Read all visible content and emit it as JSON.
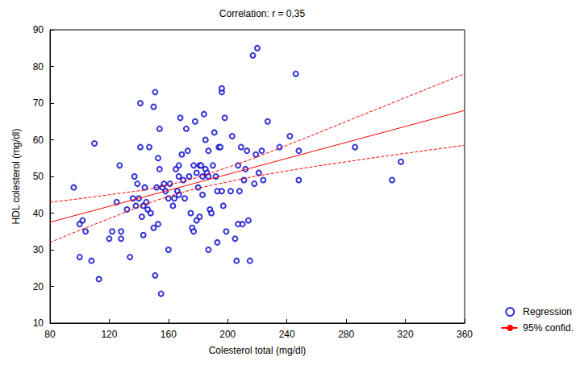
{
  "chart_data": {
    "type": "scatter",
    "title": "Correlation: r = 0,35",
    "x_label": "Colesterol total (mg/dl)",
    "y_label": "HDL colesterol (mg/dl)",
    "xlim": [
      80,
      360
    ],
    "xticks": [
      80,
      120,
      160,
      200,
      240,
      280,
      320,
      360
    ],
    "ylim": [
      10,
      90
    ],
    "yticks": [
      10,
      20,
      30,
      40,
      50,
      60,
      70,
      80,
      90
    ],
    "grid": false,
    "legend": "lower right",
    "series": [
      {
        "name": "Regression",
        "type": "scatter",
        "marker": "hollow_circle",
        "color": "#0000cc",
        "x": [
          96,
          100,
          100,
          102,
          104,
          108,
          110,
          113,
          120,
          122,
          125,
          127,
          128,
          128,
          132,
          134,
          136,
          137,
          138,
          139,
          140,
          141,
          141,
          142,
          143,
          143,
          144,
          145,
          146,
          147,
          148,
          150,
          150,
          151,
          151,
          152,
          153,
          153,
          154,
          154,
          155,
          156,
          157,
          158,
          160,
          160,
          161,
          163,
          164,
          165,
          166,
          167,
          167,
          167,
          168,
          169,
          170,
          171,
          172,
          173,
          174,
          175,
          176,
          177,
          177,
          178,
          179,
          179,
          180,
          181,
          181,
          182,
          183,
          183,
          184,
          185,
          185,
          186,
          187,
          187,
          187,
          188,
          189,
          190,
          191,
          192,
          193,
          193,
          194,
          195,
          196,
          196,
          196,
          197,
          198,
          199,
          202,
          203,
          205,
          206,
          207,
          207,
          208,
          209,
          210,
          211,
          212,
          213,
          214,
          215,
          217,
          218,
          219,
          220,
          221,
          223,
          224,
          227,
          235,
          242,
          246,
          248,
          248,
          286,
          311,
          317
        ],
        "values": [
          47,
          28,
          37,
          38,
          35,
          27,
          59,
          22,
          33,
          35,
          43,
          53,
          35,
          33,
          41,
          28,
          44,
          50,
          42,
          48,
          44,
          58,
          70,
          39,
          42,
          34,
          47,
          43,
          41,
          58,
          40,
          36,
          69,
          73,
          23,
          47,
          37,
          55,
          52,
          63,
          18,
          47,
          48,
          46,
          30,
          44,
          48,
          42,
          44,
          52,
          46,
          50,
          45,
          53,
          66,
          56,
          49,
          44,
          63,
          57,
          50,
          40,
          36,
          53,
          35,
          65,
          51,
          38,
          47,
          39,
          53,
          53,
          50,
          45,
          67,
          60,
          52,
          51,
          30,
          50,
          57,
          41,
          40,
          53,
          62,
          50,
          32,
          46,
          58,
          58,
          73,
          74,
          46,
          42,
          66,
          35,
          46,
          61,
          33,
          27,
          53,
          37,
          46,
          58,
          37,
          49,
          52,
          57,
          38,
          27,
          83,
          48,
          56,
          85,
          51,
          57,
          49,
          65,
          58,
          61,
          78,
          57,
          49,
          58,
          49,
          54
        ]
      },
      {
        "name": "Regression",
        "type": "line",
        "line_style": "solid",
        "color": "#ff0000",
        "x": [
          80,
          360
        ],
        "values": [
          37.5,
          68
        ]
      },
      {
        "name": "95% confid.",
        "type": "line",
        "line_style": "dashed",
        "color": "#ff0000",
        "x": [
          80,
          120,
          160,
          200,
          240,
          280,
          320,
          360
        ],
        "values": [
          43,
          45,
          47.7,
          52.5,
          58.5,
          65,
          71.5,
          78
        ]
      },
      {
        "name": "95% confid.",
        "type": "line",
        "line_style": "dashed",
        "color": "#ff0000",
        "x": [
          80,
          120,
          160,
          200,
          240,
          280,
          320,
          360
        ],
        "values": [
          32,
          38.5,
          44.5,
          48.5,
          51.5,
          54,
          56.3,
          58.5
        ]
      }
    ]
  }
}
